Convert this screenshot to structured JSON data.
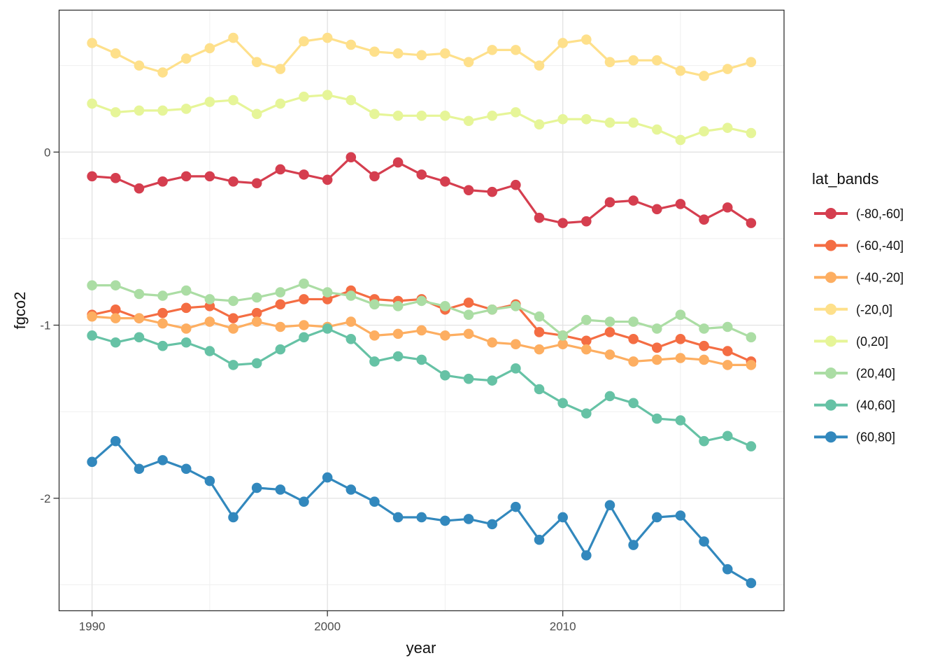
{
  "chart_data": {
    "type": "line",
    "title": "",
    "xlabel": "year",
    "ylabel": "fgco2",
    "legend_title": "lat_bands",
    "legend_position": "right",
    "grid": "major and minor, light gray on white panel (theme_bw)",
    "xlim": [
      1988.6,
      2019.4
    ],
    "ylim": [
      -2.65,
      0.82
    ],
    "x_ticks": {
      "values": [
        1990,
        2000,
        2010
      ],
      "labels": [
        "1990",
        "2000",
        "2010"
      ]
    },
    "x_minor_ticks": [
      1995,
      2005,
      2015
    ],
    "y_ticks": {
      "values": [
        0,
        -1,
        -2
      ],
      "labels": [
        "0",
        "-1",
        "-2"
      ]
    },
    "y_minor_ticks": [
      0.5,
      -0.5,
      -1.5,
      -2.5
    ],
    "x": [
      1990,
      1991,
      1992,
      1993,
      1994,
      1995,
      1996,
      1997,
      1998,
      1999,
      2000,
      2001,
      2002,
      2003,
      2004,
      2005,
      2006,
      2007,
      2008,
      2009,
      2010,
      2011,
      2012,
      2013,
      2014,
      2015,
      2016,
      2017,
      2018
    ],
    "series": [
      {
        "name": "(-80,-60]",
        "color": "#d53e4f",
        "values": [
          -0.14,
          -0.15,
          -0.21,
          -0.17,
          -0.14,
          -0.14,
          -0.17,
          -0.18,
          -0.1,
          -0.13,
          -0.16,
          -0.03,
          -0.14,
          -0.06,
          -0.13,
          -0.17,
          -0.22,
          -0.23,
          -0.19,
          -0.38,
          -0.41,
          -0.4,
          -0.29,
          -0.28,
          -0.33,
          -0.3,
          -0.39,
          -0.32,
          -0.41
        ]
      },
      {
        "name": "(-60,-40]",
        "color": "#f46d43",
        "values": [
          -0.94,
          -0.91,
          -0.96,
          -0.93,
          -0.9,
          -0.89,
          -0.96,
          -0.93,
          -0.88,
          -0.85,
          -0.85,
          -0.8,
          -0.85,
          -0.86,
          -0.85,
          -0.91,
          -0.87,
          -0.91,
          -0.88,
          -1.04,
          -1.06,
          -1.09,
          -1.04,
          -1.08,
          -1.13,
          -1.08,
          -1.12,
          -1.15,
          -1.21
        ]
      },
      {
        "name": "(-40,-20]",
        "color": "#fdae61",
        "values": [
          -0.95,
          -0.96,
          -0.96,
          -0.99,
          -1.02,
          -0.98,
          -1.02,
          -0.98,
          -1.01,
          -1.0,
          -1.01,
          -0.98,
          -1.06,
          -1.05,
          -1.03,
          -1.06,
          -1.05,
          -1.1,
          -1.11,
          -1.14,
          -1.11,
          -1.14,
          -1.17,
          -1.21,
          -1.2,
          -1.19,
          -1.2,
          -1.23,
          -1.23
        ]
      },
      {
        "name": "(-20,0]",
        "color": "#fee08b",
        "values": [
          0.63,
          0.57,
          0.5,
          0.46,
          0.54,
          0.6,
          0.66,
          0.52,
          0.48,
          0.64,
          0.66,
          0.62,
          0.58,
          0.57,
          0.56,
          0.57,
          0.52,
          0.59,
          0.59,
          0.5,
          0.63,
          0.65,
          0.52,
          0.53,
          0.53,
          0.47,
          0.44,
          0.48,
          0.52
        ]
      },
      {
        "name": "(0,20]",
        "color": "#e6f598",
        "values": [
          0.28,
          0.23,
          0.24,
          0.24,
          0.25,
          0.29,
          0.3,
          0.22,
          0.28,
          0.32,
          0.33,
          0.3,
          0.22,
          0.21,
          0.21,
          0.21,
          0.18,
          0.21,
          0.23,
          0.16,
          0.19,
          0.19,
          0.17,
          0.17,
          0.13,
          0.07,
          0.12,
          0.14,
          0.11
        ]
      },
      {
        "name": "(20,40]",
        "color": "#abdda4",
        "values": [
          -0.77,
          -0.77,
          -0.82,
          -0.83,
          -0.8,
          -0.85,
          -0.86,
          -0.84,
          -0.81,
          -0.76,
          -0.81,
          -0.83,
          -0.88,
          -0.89,
          -0.86,
          -0.89,
          -0.94,
          -0.91,
          -0.89,
          -0.95,
          -1.06,
          -0.97,
          -0.98,
          -0.98,
          -1.02,
          -0.94,
          -1.02,
          -1.01,
          -1.07
        ]
      },
      {
        "name": "(40,60]",
        "color": "#66c2a5",
        "values": [
          -1.06,
          -1.1,
          -1.07,
          -1.12,
          -1.1,
          -1.15,
          -1.23,
          -1.22,
          -1.14,
          -1.07,
          -1.02,
          -1.08,
          -1.21,
          -1.18,
          -1.2,
          -1.29,
          -1.31,
          -1.32,
          -1.25,
          -1.37,
          -1.45,
          -1.51,
          -1.41,
          -1.45,
          -1.54,
          -1.55,
          -1.67,
          -1.64,
          -1.7
        ]
      },
      {
        "name": "(60,80]",
        "color": "#3288bd",
        "values": [
          -1.79,
          -1.67,
          -1.83,
          -1.78,
          -1.83,
          -1.9,
          -2.11,
          -1.94,
          -1.95,
          -2.02,
          -1.88,
          -1.95,
          -2.02,
          -2.11,
          -2.11,
          -2.13,
          -2.12,
          -2.15,
          -2.05,
          -2.24,
          -2.11,
          -2.33,
          -2.04,
          -2.27,
          -2.11,
          -2.1,
          -2.25,
          -2.41,
          -2.49
        ]
      }
    ]
  },
  "colors": {
    "panel_background": "#ffffff",
    "panel_border": "#333333",
    "grid_major": "#e4e4e4",
    "grid_minor": "#efefef",
    "tick_mark": "#333333",
    "tick_label": "#4d4d4d",
    "axis_title": "#111111"
  }
}
